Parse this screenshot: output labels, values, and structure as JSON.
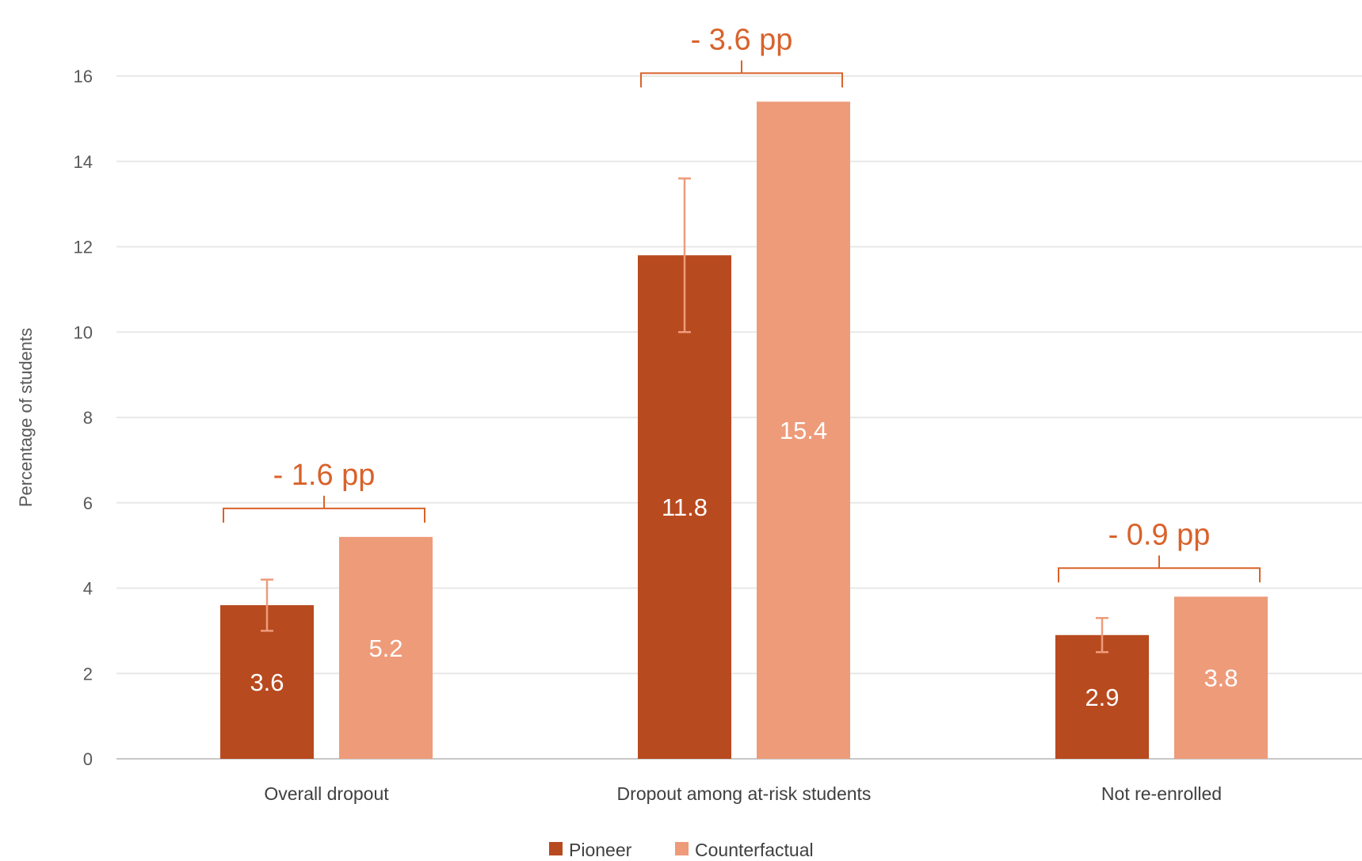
{
  "partial_title_text": "",
  "chart_data": {
    "type": "bar",
    "categories": [
      "Overall dropout",
      "Dropout among at-risk students",
      "Not re-enrolled"
    ],
    "series": [
      {
        "name": "Pioneer",
        "values": [
          3.6,
          11.8,
          2.9
        ],
        "color": "#b84a1f",
        "error_low": [
          3.0,
          10.0,
          2.5
        ],
        "error_high": [
          4.2,
          13.6,
          3.3
        ]
      },
      {
        "name": "Counterfactual",
        "values": [
          5.2,
          15.4,
          3.8
        ],
        "color": "#ee9b7a"
      }
    ],
    "data_labels": {
      "Pioneer": [
        "3.6",
        "11.8",
        "2.9"
      ],
      "Counterfactual": [
        "5.2",
        "15.4",
        "3.8"
      ]
    },
    "differences": [
      "- 1.6 pp",
      "- 3.6 pp",
      "- 0.9 pp"
    ],
    "ylabel": "Percentage of students",
    "xlabel": "",
    "ylim": [
      0,
      16
    ],
    "yticks": [
      0,
      2,
      4,
      6,
      8,
      10,
      12,
      14,
      16
    ],
    "grid": true,
    "legend": "bottom",
    "accent_color": "#d9622b",
    "gridline_color": "#e8e8e8"
  }
}
